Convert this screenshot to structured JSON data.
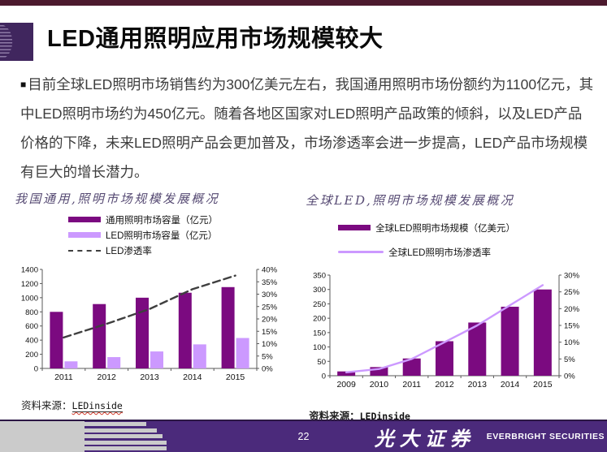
{
  "slide": {
    "title": "LED通用照明应用市场规模较大",
    "bullet": "■",
    "body": "目前全球LED照明市场销售约为300亿美元左右，我国通用照明市场份额约为1100亿元，其中LED照明市场约为450亿元。随着各地区国家对LED照明产品政策的倾斜，以及LED产品价格的下降，未来LED照明产品会更加普及，市场渗透率会进一步提高，LED产品市场规模有巨大的增长潜力。"
  },
  "charts": {
    "left": {
      "source_label": "资料来源：",
      "source_name": "LEDinside"
    },
    "right": {
      "source_label": "资料来源：",
      "source_name": "LEDinside"
    }
  },
  "footer": {
    "page_number": "22",
    "brand_cn": "光大证券",
    "brand_en": "EVERBRIGHT SECURITIES"
  },
  "colors": {
    "accent_maroon": "#4C1A2E",
    "footer_purple": "#4B2A7B",
    "dark_purple": "#7B0A80",
    "light_purple": "#CC99FF",
    "dash_gray": "#3F3F3F"
  },
  "chart_data": [
    {
      "type": "bar",
      "title": "我国通用,照明市场规模发展概况",
      "categories": [
        "2011",
        "2012",
        "2013",
        "2014",
        "2015"
      ],
      "series": [
        {
          "name": "通用照明市场容量（亿元）",
          "type": "bar",
          "axis": "left",
          "color": "#7B0A80",
          "values": [
            800,
            910,
            1000,
            1070,
            1150
          ]
        },
        {
          "name": "LED照明市场容量（亿元）",
          "type": "bar",
          "axis": "left",
          "color": "#CC99FF",
          "values": [
            100,
            160,
            240,
            340,
            430
          ]
        },
        {
          "name": "LED渗透率",
          "type": "line",
          "axis": "right",
          "color": "#3F3F3F",
          "dashed": true,
          "values": [
            12.5,
            18,
            24,
            32,
            37.5
          ]
        }
      ],
      "left_axis": {
        "min": 0,
        "max": 1400,
        "step": 200,
        "suffix": ""
      },
      "right_axis": {
        "min": 0,
        "max": 40,
        "step": 5,
        "suffix": "%"
      },
      "grid": false,
      "legend_position": "top",
      "xlabel": "",
      "ylabel": ""
    },
    {
      "type": "bar",
      "title": "全球LED,照明市场规模发展概况",
      "categories": [
        "2009",
        "2010",
        "2011",
        "2012",
        "2013",
        "2014",
        "2015"
      ],
      "series": [
        {
          "name": "全球LED照明市场规模（亿美元）",
          "type": "bar",
          "axis": "left",
          "color": "#7B0A80",
          "values": [
            15,
            30,
            60,
            120,
            185,
            240,
            300
          ]
        },
        {
          "name": "全球LED照明市场渗透率",
          "type": "line",
          "axis": "right",
          "color": "#CC99FF",
          "dashed": false,
          "values": [
            1,
            2,
            5,
            10,
            15,
            21,
            27
          ]
        }
      ],
      "left_axis": {
        "min": 0,
        "max": 350,
        "step": 50,
        "suffix": ""
      },
      "right_axis": {
        "min": 0,
        "max": 30,
        "step": 5,
        "suffix": "%"
      },
      "grid": false,
      "legend_position": "top",
      "xlabel": "",
      "ylabel": ""
    }
  ]
}
